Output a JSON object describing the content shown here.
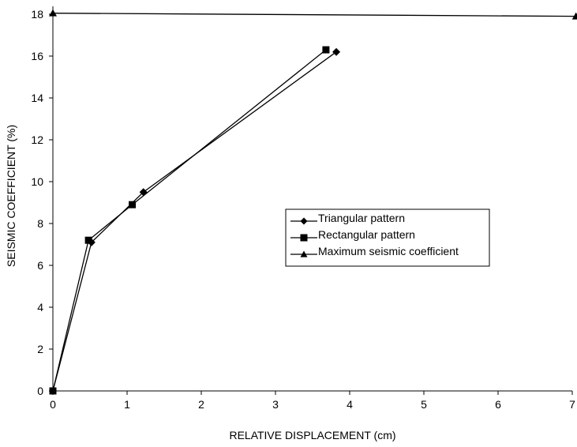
{
  "chart_data": {
    "type": "line",
    "title": "",
    "xlabel": "RELATIVE DISPLACEMENT (cm)",
    "ylabel": "SEISMIC COEFFICIENT (%)",
    "xlim": [
      0,
      7
    ],
    "ylim": [
      0,
      18
    ],
    "xticks": [
      0,
      1,
      2,
      3,
      4,
      5,
      6,
      7
    ],
    "yticks": [
      0,
      2,
      4,
      6,
      8,
      10,
      12,
      14,
      16,
      18
    ],
    "grid": false,
    "legend_position": "center-right",
    "series": [
      {
        "name": "Triangular pattern",
        "marker": "diamond",
        "x": [
          0,
          0.52,
          1.22,
          3.82
        ],
        "y": [
          0,
          7.1,
          9.5,
          16.2
        ]
      },
      {
        "name": "Rectangular pattern",
        "marker": "square",
        "x": [
          0,
          0.48,
          1.07,
          3.68
        ],
        "y": [
          0,
          7.2,
          8.9,
          16.3
        ]
      },
      {
        "name": "Maximum seismic coefficient",
        "marker": "triangle",
        "x": [
          0,
          7.05
        ],
        "y": [
          18.05,
          17.9
        ]
      }
    ]
  }
}
